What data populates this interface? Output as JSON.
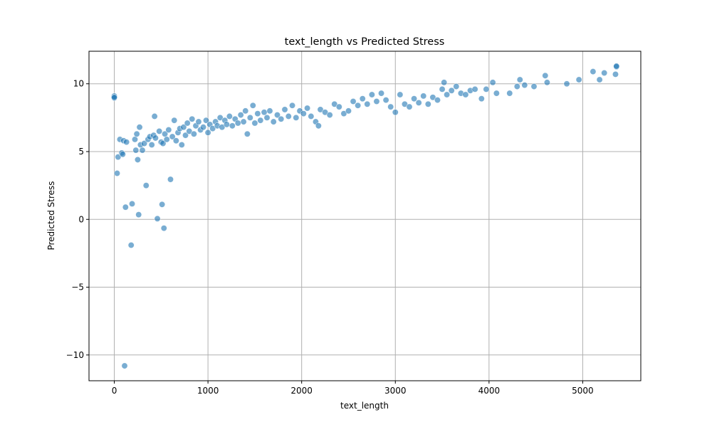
{
  "chart_data": {
    "type": "scatter",
    "title": "text_length vs Predicted Stress",
    "xlabel": "text_length",
    "ylabel": "Predicted Stress",
    "xlim": [
      -270,
      5620
    ],
    "ylim": [
      -11.9,
      12.4
    ],
    "xticks": [
      0,
      1000,
      2000,
      3000,
      4000,
      5000
    ],
    "yticks": [
      -10,
      -5,
      0,
      5,
      10
    ],
    "xtick_labels": [
      "0",
      "1000",
      "2000",
      "3000",
      "4000",
      "5000"
    ],
    "ytick_labels": [
      "−10",
      "−5",
      "0",
      "5",
      "10"
    ],
    "grid": true,
    "legend": "none",
    "marker_color": "#1f77b4",
    "series": [
      {
        "points": [
          [
            0,
            9.1
          ],
          [
            0,
            8.95
          ],
          [
            0,
            9.0
          ],
          [
            30,
            3.4
          ],
          [
            40,
            4.6
          ],
          [
            60,
            5.9
          ],
          [
            80,
            4.9
          ],
          [
            90,
            4.8
          ],
          [
            100,
            5.8
          ],
          [
            110,
            -10.8
          ],
          [
            120,
            0.9
          ],
          [
            130,
            5.7
          ],
          [
            180,
            -1.9
          ],
          [
            190,
            1.15
          ],
          [
            220,
            5.9
          ],
          [
            230,
            5.1
          ],
          [
            240,
            6.3
          ],
          [
            250,
            4.4
          ],
          [
            260,
            0.35
          ],
          [
            270,
            6.8
          ],
          [
            280,
            5.5
          ],
          [
            300,
            5.1
          ],
          [
            320,
            5.6
          ],
          [
            340,
            2.5
          ],
          [
            360,
            5.9
          ],
          [
            380,
            6.1
          ],
          [
            400,
            5.5
          ],
          [
            420,
            6.2
          ],
          [
            430,
            7.6
          ],
          [
            440,
            6.0
          ],
          [
            460,
            0.05
          ],
          [
            480,
            6.5
          ],
          [
            500,
            5.7
          ],
          [
            510,
            1.1
          ],
          [
            520,
            5.6
          ],
          [
            530,
            -0.65
          ],
          [
            540,
            6.3
          ],
          [
            560,
            5.9
          ],
          [
            580,
            6.6
          ],
          [
            600,
            2.95
          ],
          [
            620,
            6.1
          ],
          [
            640,
            7.3
          ],
          [
            660,
            5.8
          ],
          [
            680,
            6.4
          ],
          [
            700,
            6.7
          ],
          [
            720,
            5.5
          ],
          [
            740,
            6.8
          ],
          [
            760,
            6.2
          ],
          [
            780,
            7.1
          ],
          [
            800,
            6.5
          ],
          [
            830,
            7.4
          ],
          [
            850,
            6.3
          ],
          [
            870,
            6.9
          ],
          [
            900,
            7.2
          ],
          [
            920,
            6.6
          ],
          [
            950,
            6.8
          ],
          [
            980,
            7.3
          ],
          [
            1000,
            6.4
          ],
          [
            1020,
            7.0
          ],
          [
            1050,
            6.7
          ],
          [
            1080,
            7.2
          ],
          [
            1100,
            6.9
          ],
          [
            1130,
            7.5
          ],
          [
            1150,
            6.8
          ],
          [
            1180,
            7.3
          ],
          [
            1200,
            7.0
          ],
          [
            1230,
            7.6
          ],
          [
            1260,
            6.9
          ],
          [
            1290,
            7.4
          ],
          [
            1320,
            7.1
          ],
          [
            1350,
            7.7
          ],
          [
            1380,
            7.2
          ],
          [
            1400,
            8.0
          ],
          [
            1420,
            6.3
          ],
          [
            1450,
            7.5
          ],
          [
            1480,
            8.4
          ],
          [
            1500,
            7.1
          ],
          [
            1530,
            7.8
          ],
          [
            1560,
            7.3
          ],
          [
            1600,
            7.9
          ],
          [
            1630,
            7.5
          ],
          [
            1660,
            8.0
          ],
          [
            1700,
            7.2
          ],
          [
            1740,
            7.7
          ],
          [
            1780,
            7.4
          ],
          [
            1820,
            8.1
          ],
          [
            1860,
            7.6
          ],
          [
            1900,
            8.4
          ],
          [
            1940,
            7.5
          ],
          [
            1980,
            8.0
          ],
          [
            2020,
            7.8
          ],
          [
            2060,
            8.2
          ],
          [
            2100,
            7.6
          ],
          [
            2150,
            7.2
          ],
          [
            2180,
            6.9
          ],
          [
            2200,
            8.1
          ],
          [
            2250,
            7.9
          ],
          [
            2300,
            7.7
          ],
          [
            2350,
            8.5
          ],
          [
            2400,
            8.3
          ],
          [
            2450,
            7.8
          ],
          [
            2500,
            8.0
          ],
          [
            2550,
            8.7
          ],
          [
            2600,
            8.4
          ],
          [
            2650,
            8.9
          ],
          [
            2700,
            8.5
          ],
          [
            2750,
            9.2
          ],
          [
            2800,
            8.7
          ],
          [
            2850,
            9.3
          ],
          [
            2900,
            8.8
          ],
          [
            2950,
            8.3
          ],
          [
            3000,
            7.9
          ],
          [
            3050,
            9.2
          ],
          [
            3100,
            8.5
          ],
          [
            3150,
            8.3
          ],
          [
            3200,
            8.9
          ],
          [
            3250,
            8.6
          ],
          [
            3300,
            9.1
          ],
          [
            3350,
            8.5
          ],
          [
            3400,
            9.0
          ],
          [
            3450,
            8.8
          ],
          [
            3500,
            9.6
          ],
          [
            3520,
            10.1
          ],
          [
            3550,
            9.2
          ],
          [
            3600,
            9.5
          ],
          [
            3650,
            9.8
          ],
          [
            3700,
            9.3
          ],
          [
            3750,
            9.2
          ],
          [
            3800,
            9.5
          ],
          [
            3850,
            9.6
          ],
          [
            3920,
            8.9
          ],
          [
            3970,
            9.6
          ],
          [
            4040,
            10.1
          ],
          [
            4080,
            9.3
          ],
          [
            4220,
            9.3
          ],
          [
            4300,
            9.8
          ],
          [
            4330,
            10.3
          ],
          [
            4380,
            9.9
          ],
          [
            4480,
            9.8
          ],
          [
            4600,
            10.6
          ],
          [
            4620,
            10.1
          ],
          [
            4830,
            10.0
          ],
          [
            4960,
            10.3
          ],
          [
            5110,
            10.9
          ],
          [
            5180,
            10.3
          ],
          [
            5230,
            10.8
          ],
          [
            5350,
            10.7
          ],
          [
            5360,
            11.25
          ],
          [
            5360,
            11.3
          ]
        ]
      }
    ]
  }
}
